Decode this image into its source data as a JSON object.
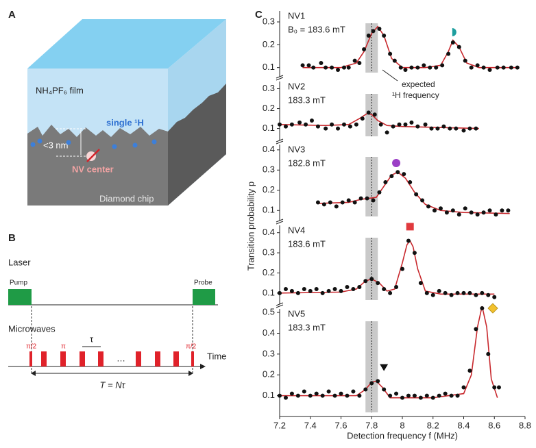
{
  "panel_a": {
    "label": "A",
    "film": "NH₄PF₆ film",
    "proton": "single ¹H",
    "depth": "<3 nm",
    "nv": "NV center",
    "chip": "Diamond chip"
  },
  "panel_b": {
    "label": "B",
    "laser": "Laser",
    "pump": "Pump",
    "probe": "Probe",
    "microwaves": "Microwaves",
    "first_pulse": "π/2",
    "pi_pulse": "π",
    "spacing": "τ",
    "ellipsis": "…",
    "last_pulse": "π/2",
    "time": "Time",
    "period": "T = Nτ"
  },
  "panel_c": {
    "label": "C",
    "xlabel": "Detection frequency f (MHz)",
    "ylabel": "Transition probability p",
    "annotation": "expected",
    "annotation2": "¹H frequency",
    "expected_frequency": 7.8
  },
  "chart_data": [
    {
      "type": "scatter",
      "title": "NV1",
      "subtitle": "B₀ = 183.6 mT",
      "color": "#111111",
      "xlim": [
        7.2,
        8.8
      ],
      "ylim": [
        0.06,
        0.36
      ],
      "yticks": [
        0.1,
        0.2,
        0.3
      ],
      "x": [
        7.35,
        7.39,
        7.42,
        7.47,
        7.5,
        7.54,
        7.58,
        7.62,
        7.65,
        7.69,
        7.72,
        7.75,
        7.78,
        7.81,
        7.85,
        7.88,
        7.92,
        7.95,
        7.99,
        8.02,
        8.06,
        8.1,
        8.14,
        8.18,
        8.22,
        8.26,
        8.3,
        8.33,
        8.37,
        8.41,
        8.45,
        8.49,
        8.53,
        8.57,
        8.62,
        8.66,
        8.71,
        8.75
      ],
      "values": [
        0.11,
        0.11,
        0.1,
        0.12,
        0.1,
        0.1,
        0.09,
        0.1,
        0.1,
        0.13,
        0.12,
        0.18,
        0.24,
        0.26,
        0.27,
        0.24,
        0.16,
        0.13,
        0.1,
        0.09,
        0.1,
        0.1,
        0.11,
        0.1,
        0.1,
        0.11,
        0.16,
        0.21,
        0.19,
        0.13,
        0.1,
        0.11,
        0.1,
        0.09,
        0.1,
        0.1,
        0.1,
        0.1
      ],
      "fit": {
        "color": "#c8282d",
        "x": [
          7.35,
          7.6,
          7.7,
          7.75,
          7.8,
          7.84,
          7.88,
          7.93,
          8.0,
          8.15,
          8.25,
          8.3,
          8.33,
          8.37,
          8.42,
          8.5,
          8.75
        ],
        "values": [
          0.1,
          0.1,
          0.12,
          0.17,
          0.25,
          0.28,
          0.24,
          0.14,
          0.1,
          0.1,
          0.11,
          0.17,
          0.22,
          0.19,
          0.12,
          0.1,
          0.1
        ]
      },
      "markers": [
        {
          "shape": "half-circle",
          "color": "#1e9e9e",
          "x": 8.33,
          "y": 0.255
        }
      ]
    },
    {
      "type": "scatter",
      "title": "NV2",
      "subtitle": "183.3 mT",
      "color": "#111111",
      "xlim": [
        7.2,
        8.8
      ],
      "ylim": [
        0.04,
        0.35
      ],
      "yticks": [
        0.1,
        0.2,
        0.3
      ],
      "x": [
        7.2,
        7.24,
        7.28,
        7.33,
        7.37,
        7.41,
        7.45,
        7.5,
        7.54,
        7.58,
        7.62,
        7.66,
        7.7,
        7.74,
        7.78,
        7.82,
        7.86,
        7.9,
        7.94,
        7.98,
        8.02,
        8.06,
        8.1,
        8.15,
        8.19,
        8.23,
        8.27,
        8.31,
        8.35,
        8.4,
        8.44,
        8.48
      ],
      "values": [
        0.12,
        0.11,
        0.12,
        0.13,
        0.12,
        0.14,
        0.11,
        0.1,
        0.12,
        0.1,
        0.12,
        0.11,
        0.12,
        0.15,
        0.18,
        0.17,
        0.12,
        0.08,
        0.11,
        0.12,
        0.12,
        0.13,
        0.11,
        0.12,
        0.1,
        0.1,
        0.11,
        0.1,
        0.1,
        0.09,
        0.1,
        0.1
      ],
      "fit": {
        "color": "#c8282d",
        "x": [
          7.2,
          7.5,
          7.65,
          7.72,
          7.77,
          7.8,
          7.84,
          7.9,
          8.0,
          8.5
        ],
        "values": [
          0.12,
          0.115,
          0.12,
          0.15,
          0.175,
          0.17,
          0.14,
          0.115,
          0.11,
          0.1
        ]
      },
      "markers": []
    },
    {
      "type": "scatter",
      "title": "NV3",
      "subtitle": "182.8 mT",
      "color": "#111111",
      "xlim": [
        7.2,
        8.8
      ],
      "ylim": [
        0.05,
        0.44
      ],
      "yticks": [
        0.1,
        0.2,
        0.3,
        0.4
      ],
      "x": [
        7.45,
        7.49,
        7.53,
        7.57,
        7.61,
        7.65,
        7.69,
        7.73,
        7.77,
        7.81,
        7.85,
        7.89,
        7.93,
        7.97,
        8.01,
        8.05,
        8.09,
        8.13,
        8.17,
        8.21,
        8.25,
        8.29,
        8.33,
        8.37,
        8.41,
        8.45,
        8.49,
        8.53,
        8.57,
        8.61,
        8.65,
        8.69
      ],
      "values": [
        0.14,
        0.13,
        0.14,
        0.12,
        0.14,
        0.15,
        0.14,
        0.16,
        0.16,
        0.15,
        0.19,
        0.24,
        0.27,
        0.29,
        0.28,
        0.24,
        0.18,
        0.15,
        0.12,
        0.1,
        0.11,
        0.09,
        0.1,
        0.08,
        0.11,
        0.09,
        0.08,
        0.09,
        0.1,
        0.08,
        0.1,
        0.1
      ],
      "fit": {
        "color": "#c8282d",
        "x": [
          7.45,
          7.65,
          7.73,
          7.78,
          7.83,
          7.88,
          7.93,
          7.97,
          8.02,
          8.08,
          8.15,
          8.25,
          8.4,
          8.7
        ],
        "values": [
          0.135,
          0.14,
          0.155,
          0.16,
          0.165,
          0.22,
          0.275,
          0.29,
          0.26,
          0.19,
          0.13,
          0.1,
          0.09,
          0.085
        ]
      },
      "markers": [
        {
          "shape": "circle",
          "color": "#9b3fc6",
          "x": 7.96,
          "y": 0.335
        }
      ]
    },
    {
      "type": "scatter",
      "title": "NV4",
      "subtitle": "183.6 mT",
      "color": "#111111",
      "xlim": [
        7.2,
        8.8
      ],
      "ylim": [
        0.045,
        0.45
      ],
      "yticks": [
        0.1,
        0.2,
        0.3,
        0.4
      ],
      "x": [
        7.2,
        7.24,
        7.28,
        7.32,
        7.36,
        7.4,
        7.44,
        7.48,
        7.52,
        7.56,
        7.6,
        7.64,
        7.68,
        7.72,
        7.76,
        7.8,
        7.84,
        7.88,
        7.92,
        7.96,
        8.0,
        8.04,
        8.08,
        8.12,
        8.16,
        8.2,
        8.24,
        8.28,
        8.32,
        8.36,
        8.4,
        8.44,
        8.48,
        8.52,
        8.56,
        8.6
      ],
      "values": [
        0.1,
        0.12,
        0.11,
        0.1,
        0.12,
        0.11,
        0.12,
        0.1,
        0.11,
        0.12,
        0.11,
        0.13,
        0.12,
        0.13,
        0.16,
        0.17,
        0.15,
        0.12,
        0.1,
        0.13,
        0.22,
        0.36,
        0.3,
        0.15,
        0.1,
        0.09,
        0.11,
        0.1,
        0.09,
        0.1,
        0.1,
        0.1,
        0.09,
        0.1,
        0.09,
        0.08
      ],
      "fit": {
        "color": "#c8282d",
        "x": [
          7.2,
          7.6,
          7.7,
          7.76,
          7.8,
          7.85,
          7.9,
          7.95,
          8.0,
          8.03,
          8.05,
          8.07,
          8.1,
          8.15,
          8.25,
          8.6
        ],
        "values": [
          0.1,
          0.105,
          0.12,
          0.16,
          0.17,
          0.15,
          0.11,
          0.12,
          0.25,
          0.34,
          0.36,
          0.33,
          0.22,
          0.11,
          0.095,
          0.095
        ]
      },
      "markers": [
        {
          "shape": "square",
          "color": "#e03a3e",
          "x": 8.05,
          "y": 0.43
        }
      ]
    },
    {
      "type": "scatter",
      "title": "NV5",
      "subtitle": "183.3 mT",
      "color": "#111111",
      "xlim": [
        7.2,
        8.8
      ],
      "ylim": [
        0,
        0.53
      ],
      "yticks": [
        0.1,
        0.2,
        0.3,
        0.4,
        0.5
      ],
      "xticks": [
        7.2,
        7.4,
        7.6,
        7.8,
        {
          "value": 8,
          "label": "8"
        },
        8.2,
        8.4,
        8.6,
        8.8
      ],
      "x": [
        7.2,
        7.24,
        7.28,
        7.32,
        7.36,
        7.4,
        7.44,
        7.48,
        7.52,
        7.56,
        7.6,
        7.64,
        7.68,
        7.72,
        7.76,
        7.8,
        7.84,
        7.88,
        7.92,
        7.96,
        8.0,
        8.04,
        8.08,
        8.12,
        8.16,
        8.2,
        8.24,
        8.28,
        8.32,
        8.36,
        8.4,
        8.44,
        8.48,
        8.52,
        8.56,
        8.6,
        8.63
      ],
      "values": [
        0.1,
        0.09,
        0.11,
        0.1,
        0.12,
        0.1,
        0.11,
        0.1,
        0.12,
        0.1,
        0.11,
        0.1,
        0.12,
        0.1,
        0.13,
        0.16,
        0.17,
        0.13,
        0.1,
        0.11,
        0.09,
        0.1,
        0.1,
        0.09,
        0.1,
        0.09,
        0.1,
        0.11,
        0.1,
        0.1,
        0.14,
        0.22,
        0.42,
        0.52,
        0.3,
        0.14,
        0.14
      ],
      "fit": {
        "color": "#c8282d",
        "x": [
          7.2,
          7.7,
          7.76,
          7.8,
          7.83,
          7.87,
          7.92,
          8.2,
          8.4,
          8.45,
          8.49,
          8.52,
          8.55,
          8.58,
          8.62
        ],
        "values": [
          0.1,
          0.1,
          0.13,
          0.165,
          0.17,
          0.14,
          0.09,
          0.09,
          0.11,
          0.2,
          0.43,
          0.53,
          0.43,
          0.18,
          0.09
        ]
      },
      "markers": [
        {
          "shape": "triangle",
          "color": "#111111",
          "x": 7.88,
          "y": 0.235
        },
        {
          "shape": "diamond",
          "color": "#f2c12e",
          "x": 8.59,
          "y": 0.52
        }
      ]
    }
  ]
}
